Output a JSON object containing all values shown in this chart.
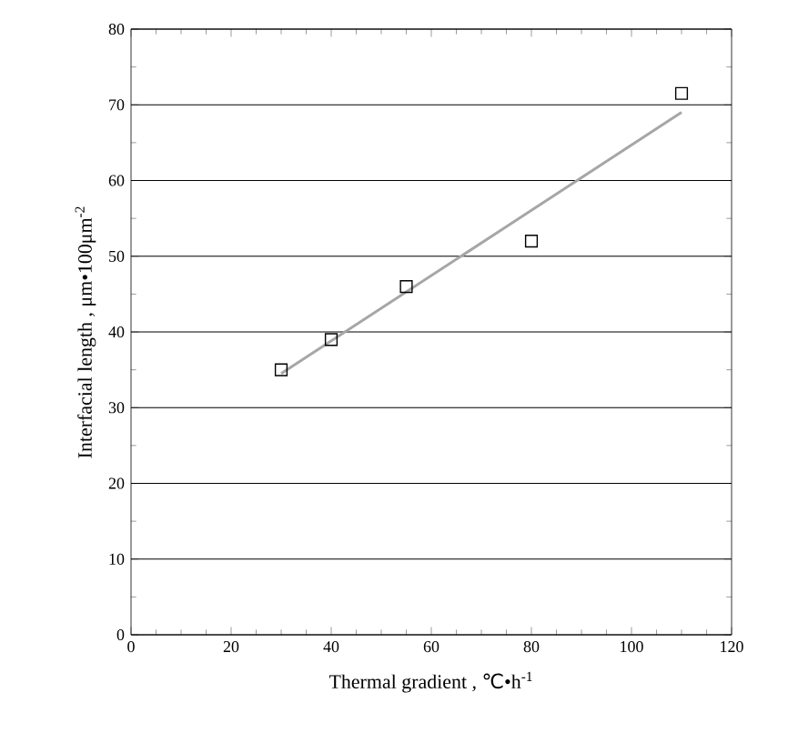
{
  "chart_data": {
    "type": "scatter",
    "xlabel": "Thermal gradient , ℃•h$^{-1}$",
    "ylabel": "Interfacial length , μm•100μm$^{-2}$",
    "xlim": [
      0,
      120
    ],
    "xticks": [
      0,
      20,
      40,
      60,
      80,
      100,
      120
    ],
    "ylim": [
      0,
      80
    ],
    "yticks": [
      0,
      10,
      20,
      30,
      40,
      50,
      60,
      70,
      80
    ],
    "grid": "y",
    "marker": "square",
    "series": [
      {
        "color": "#000000",
        "x": [
          30,
          40,
          55,
          80,
          110
        ],
        "values": [
          35,
          39,
          46,
          52,
          71.5
        ]
      },
      {
        "type": "line",
        "color": "#a6a6a6",
        "marker": "none",
        "x": [
          30,
          110
        ],
        "values": [
          34.5,
          69
        ]
      }
    ]
  }
}
